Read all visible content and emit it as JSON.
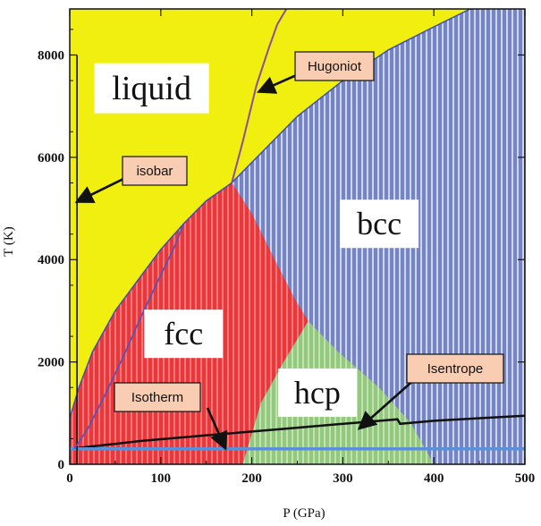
{
  "chart_data": {
    "type": "area",
    "xlabel": "P (GPa)",
    "ylabel": "T (K)",
    "xlim": [
      0,
      500
    ],
    "ylim": [
      0,
      8900
    ],
    "x_ticks": [
      0,
      100,
      200,
      300,
      400,
      500
    ],
    "y_ticks": [
      0,
      2000,
      4000,
      6000,
      8000
    ],
    "grid": false,
    "colors": {
      "liquid": "#f0ef0f",
      "fcc": "#e8383c",
      "bcc": "#7f8fc9",
      "hcp": "#9fd08a",
      "hugoniot": "#8b4f9a",
      "isotherm": "#5b8fd6",
      "isentrope": "#111111",
      "isobar": "#111111",
      "callout": "#f9cdb2"
    },
    "phases": [
      {
        "name": "liquid",
        "label": "liquid",
        "label_at": [
          90,
          7350
        ]
      },
      {
        "name": "fcc",
        "label": "fcc",
        "label_at": [
          125,
          2550
        ]
      },
      {
        "name": "bcc",
        "label": "bcc",
        "label_at": [
          340,
          4700
        ]
      },
      {
        "name": "hcp",
        "label": "hcp",
        "label_at": [
          272,
          1400
        ]
      }
    ],
    "melting_curve": [
      [
        0,
        900
      ],
      [
        10,
        1500
      ],
      [
        25,
        2200
      ],
      [
        50,
        3000
      ],
      [
        75,
        3600
      ],
      [
        100,
        4200
      ],
      [
        125,
        4700
      ],
      [
        150,
        5150
      ],
      [
        178,
        5500
      ],
      [
        200,
        5900
      ],
      [
        250,
        6800
      ],
      [
        300,
        7500
      ],
      [
        350,
        8100
      ],
      [
        400,
        8550
      ],
      [
        440,
        8900
      ]
    ],
    "fcc_bcc_boundary": [
      [
        178,
        5500
      ],
      [
        200,
        4900
      ],
      [
        225,
        4000
      ],
      [
        248,
        3200
      ],
      [
        262,
        2800
      ]
    ],
    "fcc_hcp_boundary": [
      [
        262,
        2800
      ],
      [
        235,
        2000
      ],
      [
        210,
        1200
      ],
      [
        190,
        0
      ]
    ],
    "hcp_bcc_boundary": [
      [
        262,
        2800
      ],
      [
        295,
        2200
      ],
      [
        340,
        1500
      ],
      [
        375,
        800
      ],
      [
        400,
        0
      ]
    ],
    "series": [
      {
        "name": "Hugoniot",
        "x": [
          178,
          190,
          205,
          218,
          228,
          238
        ],
        "y": [
          5500,
          6300,
          7400,
          8100,
          8600,
          8900
        ]
      },
      {
        "name": "Isentrope",
        "x": [
          0,
          40,
          80,
          120,
          160,
          200,
          240,
          280,
          320,
          360,
          363,
          400,
          450,
          500
        ],
        "y": [
          300,
          380,
          460,
          520,
          580,
          640,
          700,
          760,
          820,
          880,
          790,
          850,
          900,
          950
        ]
      },
      {
        "name": "Isotherm",
        "x": [
          0,
          500
        ],
        "y": [
          300,
          300
        ]
      },
      {
        "name": "isobar",
        "x": [
          8,
          8
        ],
        "y": [
          0,
          8000
        ]
      },
      {
        "name": "",
        "x": [
          5,
          20,
          40,
          60,
          80,
          100,
          115,
          125
        ],
        "y": [
          300,
          700,
          1400,
          2150,
          2950,
          3700,
          4250,
          4700
        ]
      }
    ],
    "callouts": [
      {
        "name": "Hugoniot",
        "text": "Hugoniot",
        "arrow_to": [
          210,
          7300
        ]
      },
      {
        "name": "isobar",
        "text": "isobar",
        "arrow_to": [
          10,
          5150
        ]
      },
      {
        "name": "Isentrope",
        "text": "Isentrope",
        "arrow_to": [
          320,
          730
        ]
      },
      {
        "name": "Isotherm",
        "text": "Isotherm",
        "arrow_to": [
          170,
          350
        ]
      }
    ]
  }
}
